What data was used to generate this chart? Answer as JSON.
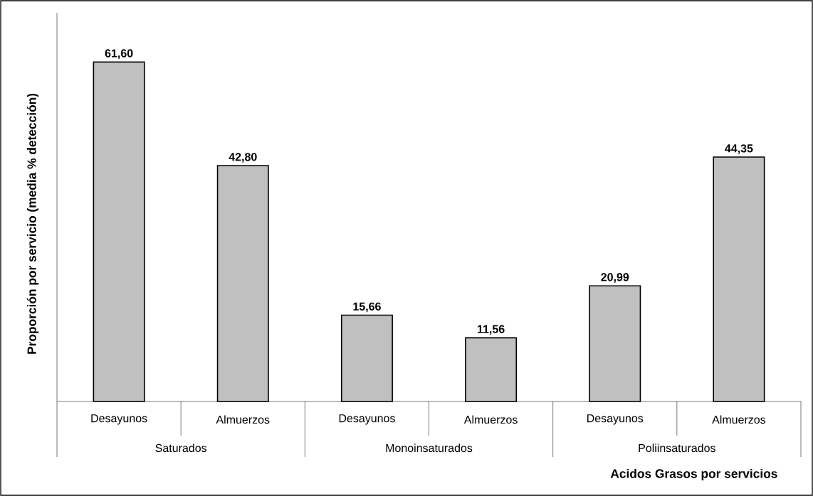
{
  "chart_data": {
    "type": "bar",
    "categories": [
      "Desayunos",
      "Almuerzos",
      "Desayunos",
      "Almuerzos",
      "Desayunos",
      "Almuerzos"
    ],
    "values": [
      61.6,
      42.8,
      15.66,
      11.56,
      20.99,
      44.35
    ],
    "value_labels": [
      "61,60",
      "42,80",
      "15,66",
      "11,56",
      "20,99",
      "44,35"
    ],
    "color": "#c0c0c0",
    "ylabel": "Proporción por servicio (media % detección)",
    "xlabel": "Acidos Grasos por servicios",
    "annotations": [
      "Saturados",
      "Monoinsaturados",
      "Poliinsaturados"
    ],
    "relative": false
  }
}
